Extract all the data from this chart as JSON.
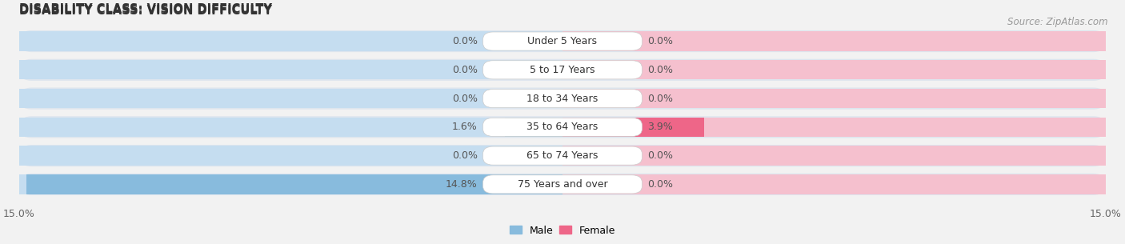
{
  "title": "DISABILITY CLASS: VISION DIFFICULTY",
  "source": "Source: ZipAtlas.com",
  "categories": [
    "Under 5 Years",
    "5 to 17 Years",
    "18 to 34 Years",
    "35 to 64 Years",
    "65 to 74 Years",
    "75 Years and over"
  ],
  "male_values": [
    0.0,
    0.0,
    0.0,
    1.6,
    0.0,
    14.8
  ],
  "female_values": [
    0.0,
    0.0,
    0.0,
    3.9,
    0.0,
    0.0
  ],
  "male_color": "#88bbdd",
  "female_color": "#ee6688",
  "male_color_light": "#c5ddf0",
  "female_color_light": "#f5c0ce",
  "axis_limit": 15.0,
  "bg_color": "#f2f2f2",
  "row_bg_color": "#e8e8e8",
  "row_bg_color_alt": "#ebebeb",
  "title_fontsize": 10.5,
  "label_fontsize": 9,
  "tick_fontsize": 9,
  "source_fontsize": 8.5
}
